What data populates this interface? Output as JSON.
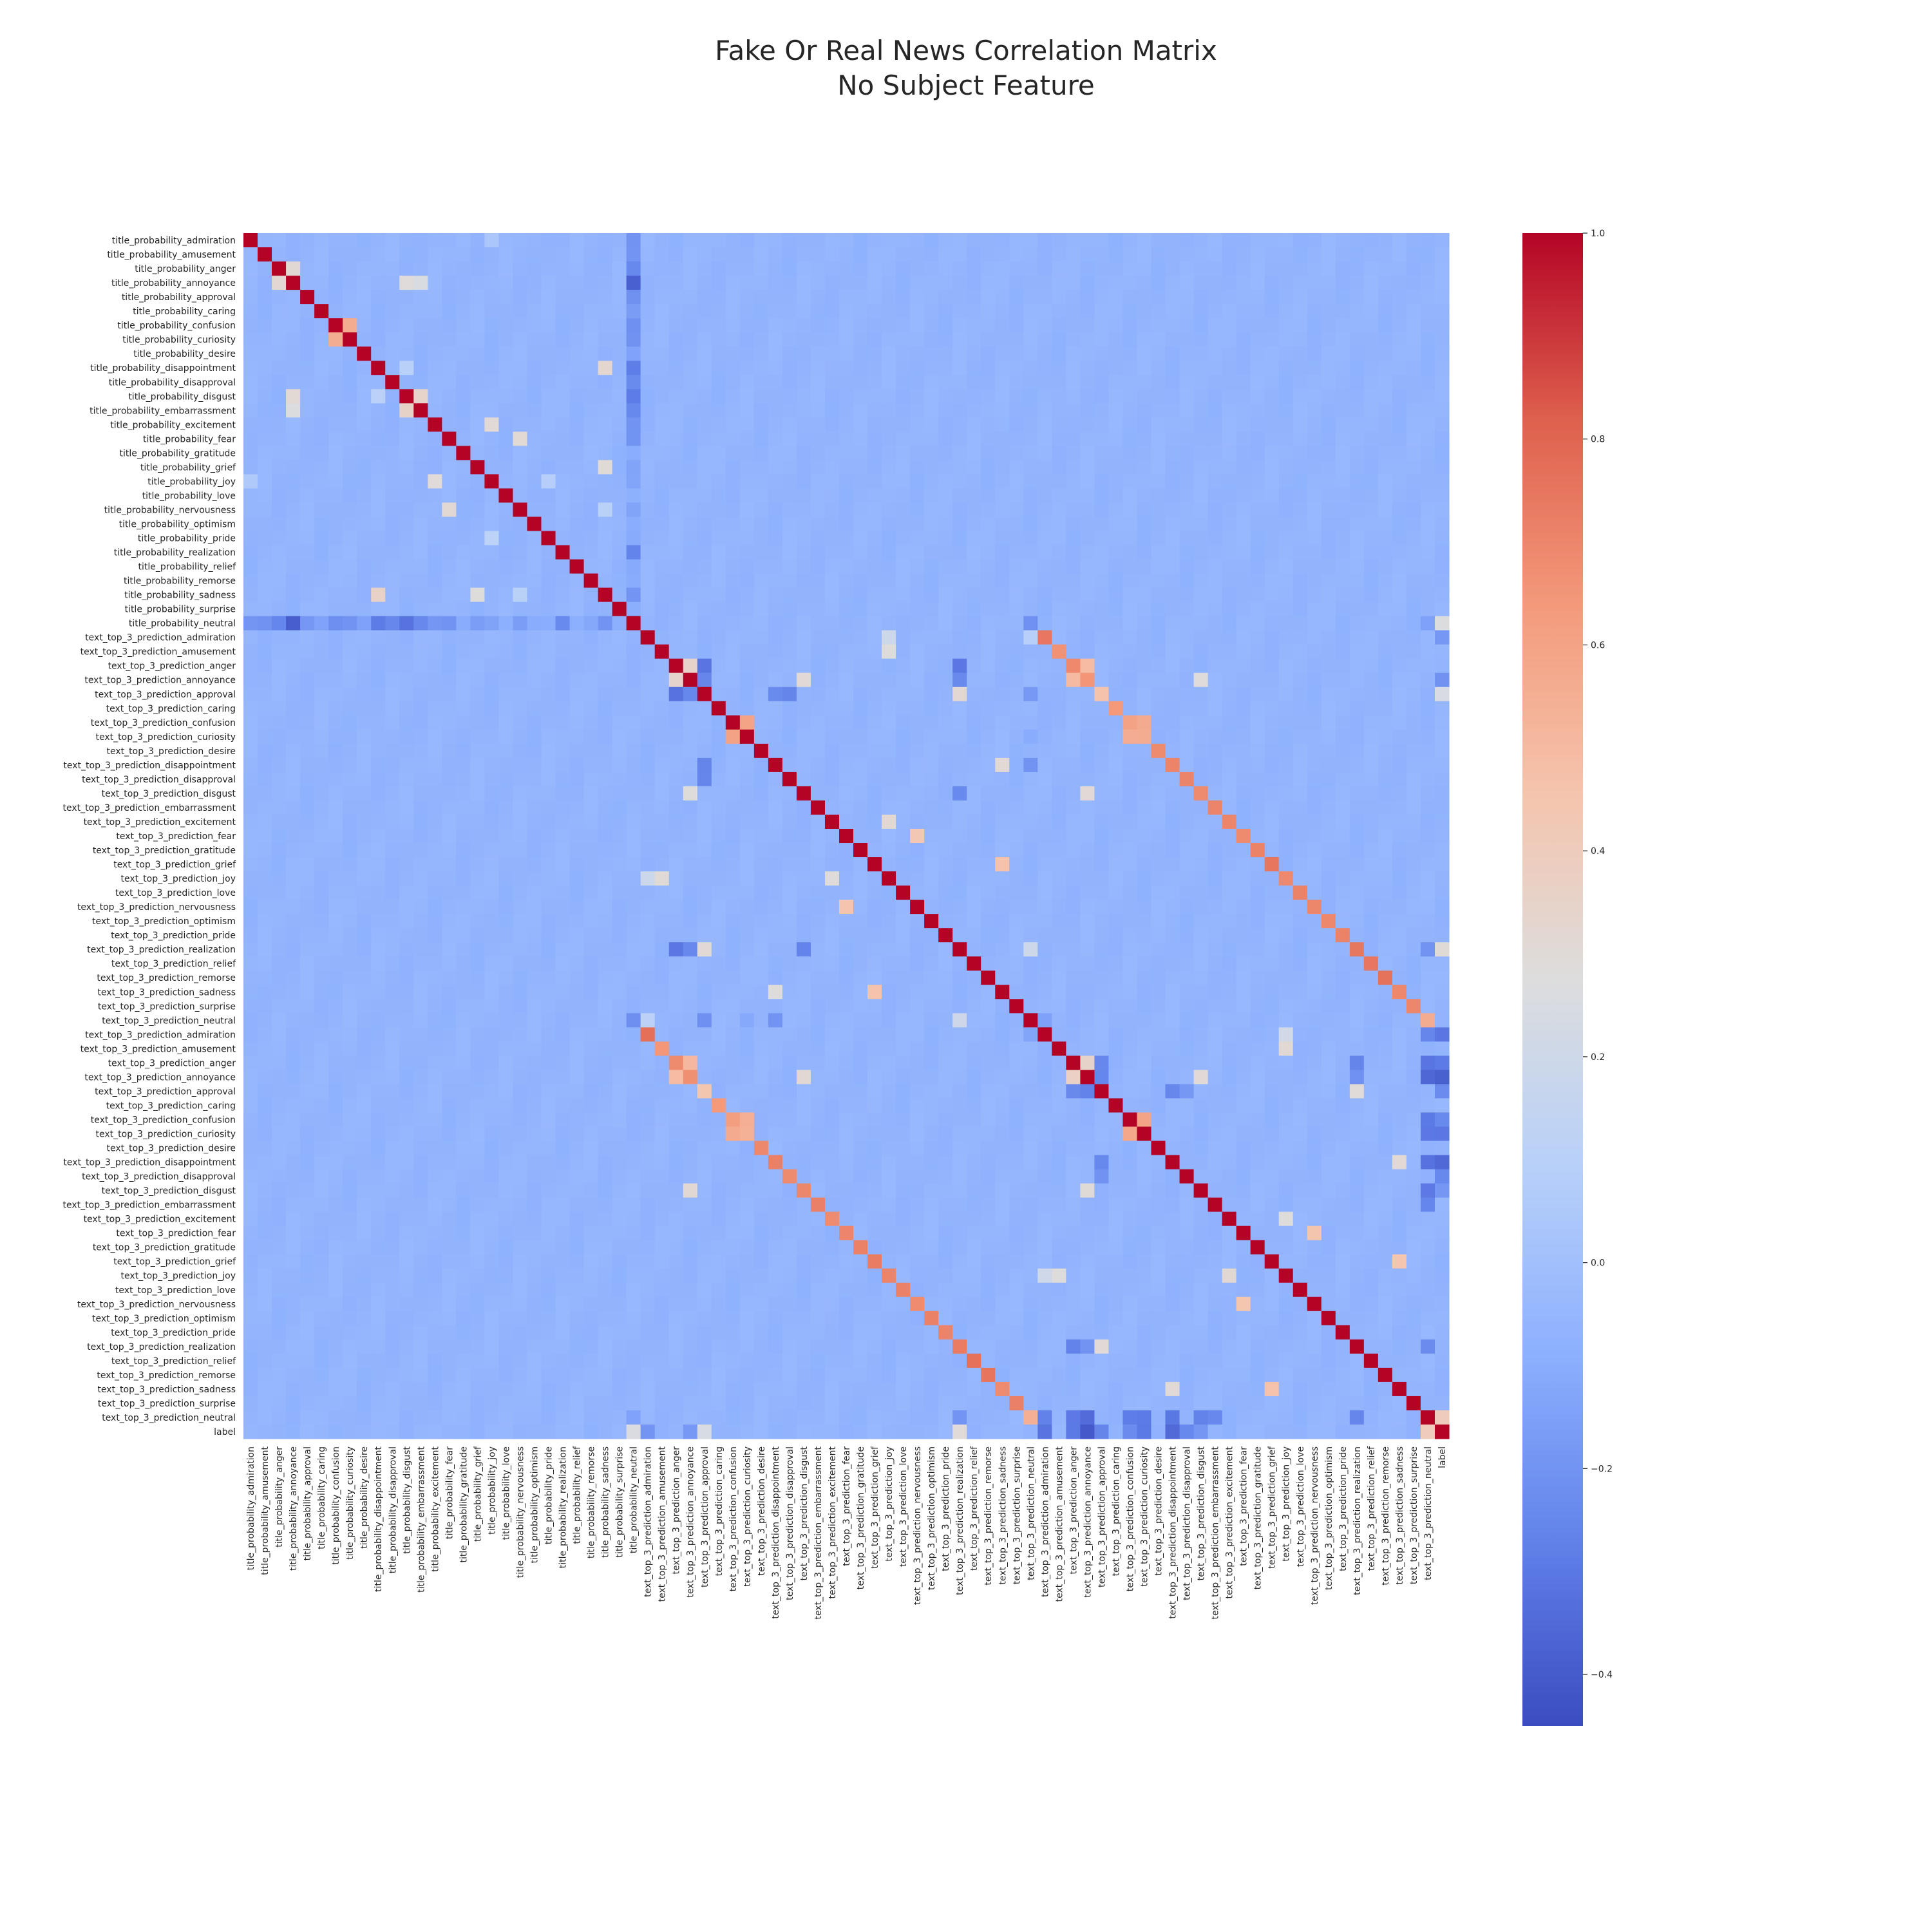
{
  "chart_data": {
    "type": "heatmap",
    "title": "Fake Or Real News Correlation Matrix",
    "subtitle": "No Subject Feature",
    "colormap": "coolwarm",
    "colors": {
      "low": "#3b4cc0",
      "mid": "#dddddd",
      "high": "#b40426"
    },
    "vmin": -0.45,
    "vmax": 1.0,
    "colorbar_ticks": [
      1.0,
      0.8,
      0.6,
      0.4,
      0.2,
      0.0,
      -0.2,
      -0.4
    ],
    "colorbar_tick_labels": [
      "1.0",
      "0.8",
      "0.6",
      "0.4",
      "0.2",
      "0.0",
      "−0.2",
      "−0.4"
    ],
    "labels": [
      "title_probability_admiration",
      "title_probability_amusement",
      "title_probability_anger",
      "title_probability_annoyance",
      "title_probability_approval",
      "title_probability_caring",
      "title_probability_confusion",
      "title_probability_curiosity",
      "title_probability_desire",
      "title_probability_disappointment",
      "title_probability_disapproval",
      "title_probability_disgust",
      "title_probability_embarrassment",
      "title_probability_excitement",
      "title_probability_fear",
      "title_probability_gratitude",
      "title_probability_grief",
      "title_probability_joy",
      "title_probability_love",
      "title_probability_nervousness",
      "title_probability_optimism",
      "title_probability_pride",
      "title_probability_realization",
      "title_probability_relief",
      "title_probability_remorse",
      "title_probability_sadness",
      "title_probability_surprise",
      "title_probability_neutral",
      "text_top_3_prediction_admiration",
      "text_top_3_prediction_amusement",
      "text_top_3_prediction_anger",
      "text_top_3_prediction_annoyance",
      "text_top_3_prediction_approval",
      "text_top_3_prediction_caring",
      "text_top_3_prediction_confusion",
      "text_top_3_prediction_curiosity",
      "text_top_3_prediction_desire",
      "text_top_3_prediction_disappointment",
      "text_top_3_prediction_disapproval",
      "text_top_3_prediction_disgust",
      "text_top_3_prediction_embarrassment",
      "text_top_3_prediction_excitement",
      "text_top_3_prediction_fear",
      "text_top_3_prediction_gratitude",
      "text_top_3_prediction_grief",
      "text_top_3_prediction_joy",
      "text_top_3_prediction_love",
      "text_top_3_prediction_nervousness",
      "text_top_3_prediction_optimism",
      "text_top_3_prediction_pride",
      "text_top_3_prediction_realization",
      "text_top_3_prediction_relief",
      "text_top_3_prediction_remorse",
      "text_top_3_prediction_sadness",
      "text_top_3_prediction_surprise",
      "text_top_3_prediction_neutral",
      "text_top_3_prediction_admiration",
      "text_top_3_prediction_amusement",
      "text_top_3_prediction_anger",
      "text_top_3_prediction_annoyance",
      "text_top_3_prediction_approval",
      "text_top_3_prediction_caring",
      "text_top_3_prediction_confusion",
      "text_top_3_prediction_curiosity",
      "text_top_3_prediction_desire",
      "text_top_3_prediction_disappointment",
      "text_top_3_prediction_disapproval",
      "text_top_3_prediction_disgust",
      "text_top_3_prediction_embarrassment",
      "text_top_3_prediction_excitement",
      "text_top_3_prediction_fear",
      "text_top_3_prediction_gratitude",
      "text_top_3_prediction_grief",
      "text_top_3_prediction_joy",
      "text_top_3_prediction_love",
      "text_top_3_prediction_nervousness",
      "text_top_3_prediction_optimism",
      "text_top_3_prediction_pride",
      "text_top_3_prediction_realization",
      "text_top_3_prediction_relief",
      "text_top_3_prediction_remorse",
      "text_top_3_prediction_sadness",
      "text_top_3_prediction_surprise",
      "text_top_3_prediction_neutral",
      "label"
    ],
    "baseline_value": -0.06,
    "diagonal_value": 1.0,
    "pairs": [
      [
        6,
        7,
        0.55
      ],
      [
        2,
        3,
        0.32
      ],
      [
        3,
        11,
        0.3
      ],
      [
        3,
        12,
        0.25
      ],
      [
        11,
        12,
        0.35
      ],
      [
        9,
        25,
        0.35
      ],
      [
        9,
        11,
        0.1
      ],
      [
        13,
        17,
        0.3
      ],
      [
        14,
        19,
        0.3
      ],
      [
        16,
        25,
        0.3
      ],
      [
        17,
        21,
        0.1
      ],
      [
        19,
        25,
        0.1
      ],
      [
        0,
        17,
        0.05
      ],
      [
        28,
        56,
        0.75
      ],
      [
        29,
        57,
        0.65
      ],
      [
        30,
        58,
        0.7
      ],
      [
        31,
        59,
        0.65
      ],
      [
        32,
        60,
        0.45
      ],
      [
        33,
        61,
        0.65
      ],
      [
        34,
        62,
        0.6
      ],
      [
        35,
        63,
        0.55
      ],
      [
        36,
        64,
        0.7
      ],
      [
        37,
        65,
        0.7
      ],
      [
        38,
        66,
        0.7
      ],
      [
        39,
        67,
        0.7
      ],
      [
        40,
        68,
        0.7
      ],
      [
        41,
        69,
        0.7
      ],
      [
        42,
        70,
        0.7
      ],
      [
        43,
        71,
        0.7
      ],
      [
        44,
        72,
        0.75
      ],
      [
        45,
        73,
        0.7
      ],
      [
        46,
        74,
        0.7
      ],
      [
        47,
        75,
        0.7
      ],
      [
        48,
        76,
        0.7
      ],
      [
        49,
        77,
        0.7
      ],
      [
        50,
        78,
        0.75
      ],
      [
        51,
        79,
        0.75
      ],
      [
        52,
        80,
        0.75
      ],
      [
        53,
        81,
        0.7
      ],
      [
        54,
        82,
        0.7
      ],
      [
        55,
        83,
        0.55
      ],
      [
        34,
        35,
        0.6
      ],
      [
        62,
        63,
        0.6
      ],
      [
        30,
        31,
        0.35
      ],
      [
        58,
        59,
        0.35
      ],
      [
        30,
        58,
        0.7
      ],
      [
        31,
        58,
        0.5
      ],
      [
        30,
        59,
        0.5
      ],
      [
        62,
        35,
        0.55
      ],
      [
        63,
        34,
        0.55
      ],
      [
        37,
        53,
        0.3
      ],
      [
        65,
        81,
        0.3
      ],
      [
        44,
        53,
        0.45
      ],
      [
        72,
        81,
        0.45
      ],
      [
        45,
        41,
        0.3
      ],
      [
        73,
        69,
        0.3
      ],
      [
        42,
        47,
        0.45
      ],
      [
        70,
        75,
        0.45
      ],
      [
        29,
        45,
        0.3
      ],
      [
        57,
        73,
        0.3
      ],
      [
        31,
        39,
        0.3
      ],
      [
        59,
        67,
        0.3
      ],
      [
        31,
        67,
        0.3
      ],
      [
        59,
        39,
        0.3
      ],
      [
        28,
        45,
        0.2
      ],
      [
        56,
        73,
        0.2
      ],
      [
        27,
        0,
        -0.2
      ],
      [
        27,
        1,
        -0.2
      ],
      [
        27,
        2,
        -0.25
      ],
      [
        27,
        3,
        -0.38
      ],
      [
        27,
        4,
        -0.2
      ],
      [
        27,
        5,
        -0.15
      ],
      [
        27,
        6,
        -0.2
      ],
      [
        27,
        7,
        -0.2
      ],
      [
        27,
        8,
        -0.15
      ],
      [
        27,
        9,
        -0.3
      ],
      [
        27,
        10,
        -0.25
      ],
      [
        27,
        11,
        -0.3
      ],
      [
        27,
        12,
        -0.25
      ],
      [
        27,
        13,
        -0.2
      ],
      [
        27,
        14,
        -0.2
      ],
      [
        27,
        15,
        -0.1
      ],
      [
        27,
        16,
        -0.15
      ],
      [
        27,
        17,
        -0.15
      ],
      [
        27,
        18,
        -0.1
      ],
      [
        27,
        19,
        -0.15
      ],
      [
        27,
        20,
        -0.1
      ],
      [
        27,
        21,
        -0.1
      ],
      [
        27,
        22,
        -0.25
      ],
      [
        27,
        23,
        -0.1
      ],
      [
        27,
        24,
        -0.1
      ],
      [
        27,
        25,
        -0.2
      ],
      [
        27,
        26,
        -0.1
      ],
      [
        27,
        55,
        -0.2
      ],
      [
        27,
        83,
        -0.15
      ],
      [
        27,
        84,
        0.25
      ],
      [
        28,
        84,
        -0.2
      ],
      [
        31,
        84,
        -0.2
      ],
      [
        32,
        84,
        0.25
      ],
      [
        50,
        84,
        0.3
      ],
      [
        83,
        84,
        0.4
      ],
      [
        56,
        84,
        -0.3
      ],
      [
        58,
        84,
        -0.3
      ],
      [
        59,
        84,
        -0.4
      ],
      [
        60,
        84,
        -0.25
      ],
      [
        62,
        84,
        -0.25
      ],
      [
        63,
        84,
        -0.3
      ],
      [
        65,
        84,
        -0.35
      ],
      [
        66,
        84,
        -0.25
      ],
      [
        67,
        84,
        -0.2
      ],
      [
        83,
        56,
        -0.25
      ],
      [
        83,
        58,
        -0.3
      ],
      [
        83,
        59,
        -0.35
      ],
      [
        83,
        62,
        -0.3
      ],
      [
        83,
        63,
        -0.3
      ],
      [
        83,
        65,
        -0.3
      ],
      [
        83,
        67,
        -0.28
      ],
      [
        83,
        68,
        -0.25
      ],
      [
        83,
        78,
        -0.25
      ],
      [
        83,
        50,
        -0.2
      ],
      [
        55,
        28,
        0.1
      ],
      [
        55,
        32,
        -0.2
      ],
      [
        55,
        37,
        -0.2
      ],
      [
        55,
        50,
        0.2
      ],
      [
        55,
        56,
        -0.15
      ],
      [
        32,
        50,
        0.3
      ],
      [
        32,
        37,
        -0.25
      ],
      [
        32,
        38,
        -0.25
      ],
      [
        32,
        30,
        -0.3
      ],
      [
        32,
        31,
        -0.25
      ],
      [
        50,
        30,
        -0.3
      ],
      [
        50,
        31,
        -0.25
      ],
      [
        50,
        39,
        -0.25
      ],
      [
        60,
        78,
        0.3
      ],
      [
        60,
        65,
        -0.25
      ],
      [
        60,
        66,
        -0.2
      ],
      [
        60,
        58,
        -0.25
      ],
      [
        60,
        59,
        -0.25
      ],
      [
        78,
        58,
        -0.25
      ],
      [
        78,
        59,
        -0.2
      ],
      [
        35,
        55,
        -0.1
      ]
    ]
  }
}
